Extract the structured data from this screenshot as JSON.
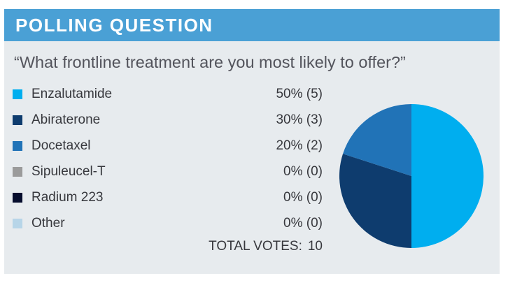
{
  "header": {
    "title": "POLLING QUESTION"
  },
  "question": "“What frontline treatment are you most likely to offer?”",
  "totals": {
    "label": "TOTAL VOTES:",
    "value": "10"
  },
  "colors": {
    "header_bg": "#4AA0D5",
    "panel_bg": "#E7EBEE",
    "header_text": "#FFFFFF",
    "question_text": "#53545C",
    "body_text": "#37383D"
  },
  "chart_data": {
    "type": "pie",
    "title": "What frontline treatment are you most likely to offer?",
    "categories": [
      "Enzalutamide",
      "Abiraterone",
      "Docetaxel",
      "Sipuleucel-T",
      "Radium 223",
      "Other"
    ],
    "values_percent": [
      50,
      30,
      20,
      0,
      0,
      0
    ],
    "votes": [
      5,
      3,
      2,
      0,
      0,
      0
    ],
    "value_labels": [
      "50% (5)",
      "30% (3)",
      "20% (2)",
      "0% (0)",
      "0% (0)",
      "0% (0)"
    ],
    "total_votes": 10,
    "colors": [
      "#00AEEF",
      "#0E3C6E",
      "#2173B7",
      "#9B9B9B",
      "#060D2D",
      "#B7D5E8"
    ],
    "start_angle_deg": 0,
    "direction": "clockwise",
    "legend_position": "left"
  }
}
